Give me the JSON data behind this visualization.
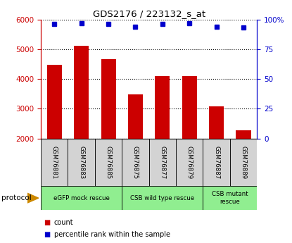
{
  "title": "GDS2176 / 223132_s_at",
  "samples": [
    "GSM76881",
    "GSM76883",
    "GSM76885",
    "GSM76875",
    "GSM76877",
    "GSM76879",
    "GSM76887",
    "GSM76889"
  ],
  "counts": [
    4480,
    5120,
    4660,
    3480,
    4100,
    4100,
    3070,
    2280
  ],
  "percentiles": [
    96,
    97,
    96,
    94,
    96,
    97,
    94,
    93
  ],
  "bar_color": "#cc0000",
  "dot_color": "#0000cc",
  "ylim_left": [
    2000,
    6000
  ],
  "ylim_right": [
    0,
    100
  ],
  "yticks_left": [
    2000,
    3000,
    4000,
    5000,
    6000
  ],
  "yticks_right": [
    0,
    25,
    50,
    75,
    100
  ],
  "ytick_labels_right": [
    "0",
    "25",
    "50",
    "75",
    "100%"
  ],
  "groups": [
    {
      "label": "eGFP mock rescue",
      "start": 0,
      "end": 3
    },
    {
      "label": "CSB wild type rescue",
      "start": 3,
      "end": 6
    },
    {
      "label": "CSB mutant\nrescue",
      "start": 6,
      "end": 8
    }
  ],
  "group_color": "#90ee90",
  "protocol_label": "protocol",
  "legend_count_label": "count",
  "legend_percentile_label": "percentile rank within the sample",
  "tick_label_color_left": "#cc0000",
  "tick_label_color_right": "#0000cc",
  "bg_color": "#ffffff",
  "sample_box_color": "#d3d3d3",
  "figsize": [
    4.15,
    3.45
  ],
  "dpi": 100
}
